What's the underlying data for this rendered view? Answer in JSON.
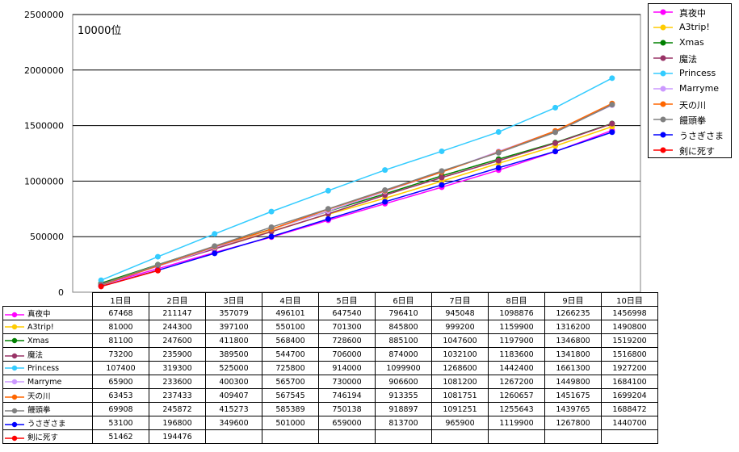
{
  "chart_data": {
    "type": "line",
    "title": "10000位",
    "xlabel": "",
    "ylabel": "",
    "ylim": [
      0,
      2500000
    ],
    "yticks": [
      0,
      500000,
      1000000,
      1500000,
      2000000,
      2500000
    ],
    "ytick_labels": [
      "0",
      "500000",
      "1000000",
      "1500000",
      "2000000",
      "2500000"
    ],
    "grid": true,
    "legend_position": "top-right",
    "categories": [
      "1日目",
      "2日目",
      "3日目",
      "4日目",
      "5日目",
      "6日目",
      "7日目",
      "8日目",
      "9日目",
      "10日目"
    ],
    "series": [
      {
        "name": "真夜中",
        "color": "#ff00ff",
        "values": [
          67468,
          211147,
          357079,
          496101,
          647540,
          796410,
          945048,
          1098876,
          1266235,
          1456998
        ]
      },
      {
        "name": "A3trip!",
        "color": "#ffcc00",
        "values": [
          81000,
          244300,
          397100,
          550100,
          701300,
          845800,
          999200,
          1159900,
          1316200,
          1490800
        ]
      },
      {
        "name": "Xmas",
        "color": "#008000",
        "values": [
          81100,
          247600,
          411800,
          568400,
          728600,
          885100,
          1047600,
          1197900,
          1346800,
          1519200
        ]
      },
      {
        "name": "魔法",
        "color": "#993366",
        "values": [
          73200,
          235900,
          389500,
          544700,
          706000,
          874000,
          1032100,
          1183600,
          1341800,
          1516800
        ]
      },
      {
        "name": "Princess",
        "color": "#33ccff",
        "values": [
          107400,
          319300,
          525000,
          725800,
          914000,
          1099900,
          1268600,
          1442400,
          1661300,
          1927200
        ]
      },
      {
        "name": "Marryme",
        "color": "#cc99ff",
        "values": [
          65900,
          233600,
          400300,
          565700,
          730000,
          906600,
          1081200,
          1267200,
          1449800,
          1684100
        ]
      },
      {
        "name": "天の川",
        "color": "#ff6600",
        "values": [
          63453,
          237433,
          409407,
          567545,
          746194,
          913355,
          1081751,
          1260657,
          1451675,
          1699204
        ]
      },
      {
        "name": "饅頭拳",
        "color": "#808080",
        "values": [
          69908,
          245872,
          415273,
          585389,
          750138,
          918897,
          1091251,
          1255643,
          1439765,
          1688472
        ]
      },
      {
        "name": "うさぎさま",
        "color": "#0000ff",
        "values": [
          53100,
          196800,
          349600,
          501000,
          659000,
          813700,
          965900,
          1119900,
          1267800,
          1440700
        ]
      },
      {
        "name": "剣に死す",
        "color": "#ff0000",
        "values": [
          51462,
          194476,
          null,
          null,
          null,
          null,
          null,
          null,
          null,
          null
        ]
      }
    ]
  }
}
